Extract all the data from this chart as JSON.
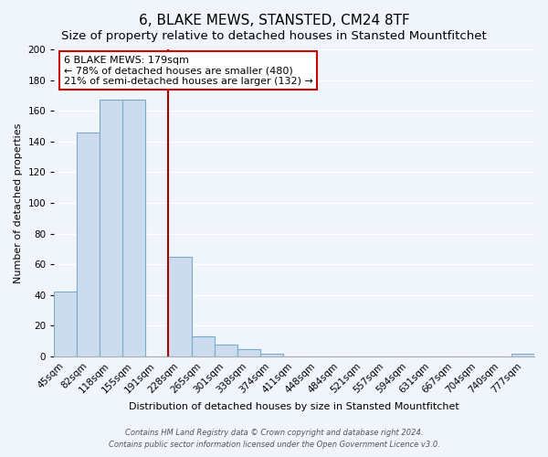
{
  "title": "6, BLAKE MEWS, STANSTED, CM24 8TF",
  "subtitle": "Size of property relative to detached houses in Stansted Mountfitchet",
  "xlabel": "Distribution of detached houses by size in Stansted Mountfitchet",
  "ylabel": "Number of detached properties",
  "bar_values": [
    42,
    146,
    167,
    167,
    0,
    65,
    13,
    8,
    5,
    2,
    0,
    0,
    0,
    0,
    0,
    0,
    0,
    0,
    0,
    0,
    2
  ],
  "categories": [
    "45sqm",
    "82sqm",
    "118sqm",
    "155sqm",
    "191sqm",
    "228sqm",
    "265sqm",
    "301sqm",
    "338sqm",
    "374sqm",
    "411sqm",
    "448sqm",
    "484sqm",
    "521sqm",
    "557sqm",
    "594sqm",
    "631sqm",
    "667sqm",
    "704sqm",
    "740sqm",
    "777sqm"
  ],
  "bar_color": "#ccdcee",
  "bar_edge_color": "#7aaaca",
  "vline_index": 4,
  "vline_color": "#aa0000",
  "ylim": [
    0,
    200
  ],
  "yticks": [
    0,
    20,
    40,
    60,
    80,
    100,
    120,
    140,
    160,
    180,
    200
  ],
  "annotation_line1": "6 BLAKE MEWS: 179sqm",
  "annotation_line2": "← 78% of detached houses are smaller (480)",
  "annotation_line3": "21% of semi-detached houses are larger (132) →",
  "annotation_box_color": "#ffffff",
  "annotation_box_edge": "#cc0000",
  "footer_line1": "Contains HM Land Registry data © Crown copyright and database right 2024.",
  "footer_line2": "Contains public sector information licensed under the Open Government Licence v3.0.",
  "background_color": "#f0f4fb",
  "grid_color": "#ffffff",
  "title_fontsize": 11,
  "subtitle_fontsize": 9.5,
  "ylabel_fontsize": 8,
  "xlabel_fontsize": 8,
  "tick_fontsize": 7.5,
  "annot_fontsize": 8
}
